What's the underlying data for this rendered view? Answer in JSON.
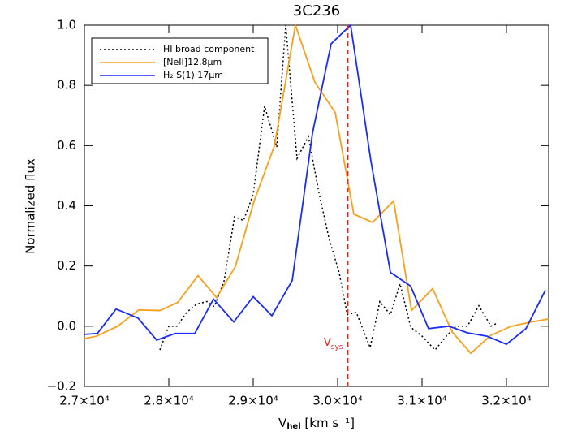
{
  "chart_data": {
    "type": "line",
    "title": "3C236",
    "y_label": "Normalized flux",
    "x_label": {
      "main": "V",
      "sub": "hel",
      "rest": " [km s⁻¹]"
    },
    "xlim": [
      27000,
      32500
    ],
    "ylim": [
      -0.2,
      1.0
    ],
    "xticks": [
      {
        "value": 27000,
        "label": "2.7×10⁴"
      },
      {
        "value": 28000,
        "label": "2.8×10⁴"
      },
      {
        "value": 29000,
        "label": "2.9×10⁴"
      },
      {
        "value": 30000,
        "label": "3.0×10⁴"
      },
      {
        "value": 31000,
        "label": "3.1×10⁴"
      },
      {
        "value": 32000,
        "label": "3.2×10⁴"
      }
    ],
    "yticks": [
      {
        "value": -0.2,
        "label": "−0.2"
      },
      {
        "value": 0,
        "label": "0.0"
      },
      {
        "value": 0.2,
        "label": "0.2"
      },
      {
        "value": 0.4,
        "label": "0.4"
      },
      {
        "value": 0.6,
        "label": "0.6"
      },
      {
        "value": 0.8,
        "label": "0.8"
      },
      {
        "value": 1,
        "label": "1.0"
      }
    ],
    "legend": "upper left",
    "annotation": {
      "main": "V",
      "sub": "sys",
      "x": 30120,
      "color": "#e0281f"
    },
    "series": [
      {
        "name": "HI broad component",
        "color": "#000000",
        "dash": "dotted",
        "x": [
          27894,
          28000,
          28096,
          28212,
          28327,
          28452,
          28538,
          28654,
          28779,
          28885,
          29000,
          29135,
          29279,
          29385,
          29519,
          29654,
          29779,
          29894,
          30019,
          30115,
          30221,
          30385,
          30500,
          30625,
          30740,
          30865,
          31000,
          31154,
          31288,
          31404,
          31538,
          31673,
          31817,
          31894
        ],
        "values": [
          -0.079,
          0.0,
          0.0,
          0.046,
          0.073,
          0.082,
          0.065,
          0.149,
          0.364,
          0.351,
          0.438,
          0.731,
          0.595,
          1.0,
          0.557,
          0.63,
          0.443,
          0.296,
          0.177,
          0.038,
          0.046,
          -0.071,
          0.082,
          0.038,
          0.141,
          -0.003,
          -0.033,
          -0.079,
          -0.033,
          0.0,
          0.0,
          0.068,
          0.0,
          0.011
        ]
      },
      {
        "name": "[NeII]12.8μm",
        "color": "#f7a01c",
        "dash": "solid",
        "x": [
          27000,
          27144,
          27394,
          27644,
          27894,
          28106,
          28346,
          28567,
          28788,
          29010,
          29250,
          29500,
          29731,
          29971,
          30192,
          30413,
          30663,
          30875,
          31125,
          31356,
          31577,
          31817,
          32058,
          32298,
          32500
        ],
        "values": [
          -0.041,
          -0.033,
          0.0,
          0.054,
          0.052,
          0.079,
          0.168,
          0.095,
          0.198,
          0.416,
          0.598,
          1.0,
          0.81,
          0.71,
          0.372,
          0.345,
          0.416,
          0.052,
          0.125,
          -0.019,
          -0.09,
          -0.03,
          0.0,
          0.014,
          0.024
        ]
      },
      {
        "name": "H₂ S(1) 17μm",
        "color": "#1a2cf5",
        "dash": "solid",
        "x": [
          27000,
          27154,
          27375,
          27635,
          27856,
          28077,
          28308,
          28529,
          28769,
          29000,
          29221,
          29462,
          29702,
          29923,
          30154,
          30394,
          30625,
          30865,
          31077,
          31317,
          31538,
          31769,
          32000,
          32231,
          32462
        ],
        "values": [
          -0.027,
          -0.024,
          0.057,
          0.027,
          -0.046,
          -0.024,
          -0.024,
          0.09,
          0.014,
          0.098,
          0.035,
          0.152,
          0.641,
          0.938,
          1.0,
          0.549,
          0.179,
          0.133,
          -0.008,
          0.0,
          -0.022,
          -0.033,
          -0.06,
          -0.008,
          0.12
        ]
      }
    ]
  }
}
